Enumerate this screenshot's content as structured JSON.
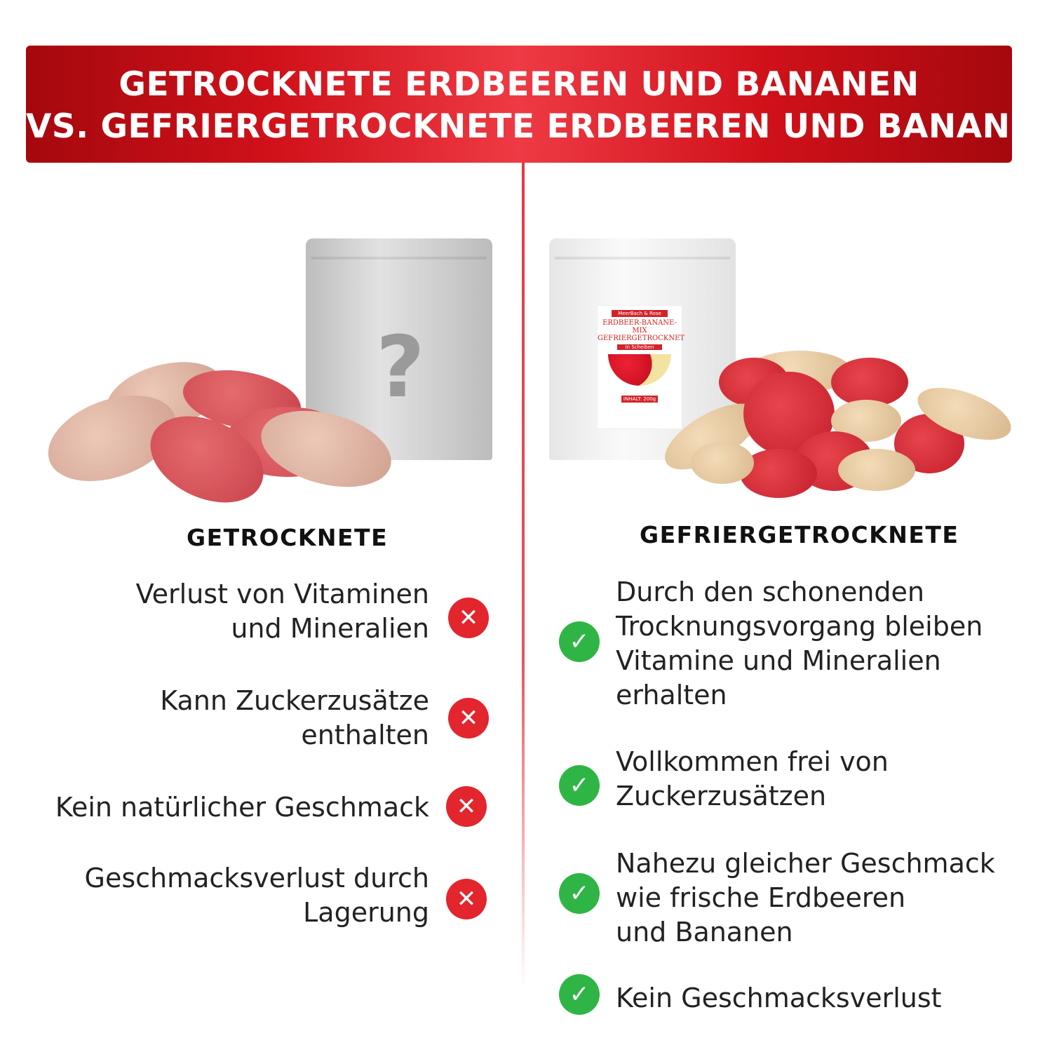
{
  "header": {
    "line1": "GETROCKNETE ERDBEEREN UND BANANEN",
    "line2": "VS. GEFRIERGETROCKNETE ERDBEEREN UND BANANEN"
  },
  "left": {
    "bag_symbol": "?",
    "title": "GETROCKNETE",
    "icon": "x-circle-icon",
    "items": [
      {
        "l1": "Verlust von Vitaminen",
        "l2": "und Mineralien"
      },
      {
        "l1": "Kann Zuckerzusätze",
        "l2": "enthalten"
      },
      {
        "l1": "Kein natürlicher Geschmack"
      },
      {
        "l1": "Geschmacksverlust durch",
        "l2": "Lagerung"
      }
    ]
  },
  "right": {
    "package": {
      "brand": "MeerBach & Rose",
      "title1": "ERDBEER-BANANE-MIX",
      "title2": "GEFRIERGETROCKNET",
      "pill": "In Scheiben",
      "inhalt": "INHALT: 200g"
    },
    "title": "GEFRIERGETROCKNETE",
    "icon": "check-circle-icon",
    "items": [
      {
        "l1": "Durch den schonenden",
        "l2": "Trocknungsvorgang bleiben",
        "l3": "Vitamine und Mineralien",
        "l4": "erhalten"
      },
      {
        "l1": "Vollkommen frei von",
        "l2": "Zuckerzusätzen"
      },
      {
        "l1": "Nahezu gleicher Geschmack",
        "l2": "wie frische Erdbeeren",
        "l3": "und Bananen"
      },
      {
        "l1": "Kein Geschmacksverlust"
      }
    ]
  },
  "colors": {
    "accent_red": "#d0111a",
    "cross_red": "#e3252d",
    "check_green": "#2fb545"
  }
}
